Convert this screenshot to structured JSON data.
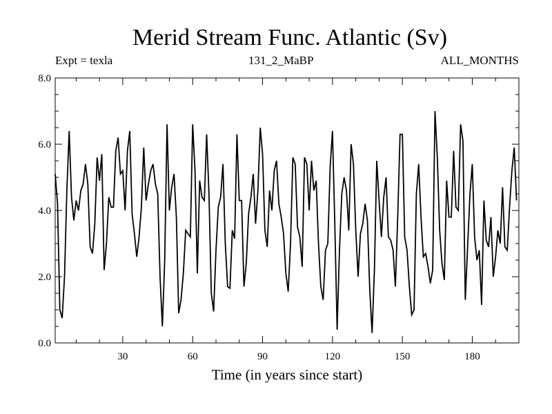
{
  "header": {
    "title": "Merid Stream Func. Atlantic (Sv)",
    "left_label": "Expt = texla",
    "center_label": "131_2_MaBP",
    "right_label": "ALL_MONTHS"
  },
  "chart_data": {
    "type": "line",
    "title": "Merid Stream Func. Atlantic (Sv)",
    "xlabel": "Time (in years since start)",
    "ylabel": "",
    "xlim": [
      1,
      200
    ],
    "ylim": [
      0.0,
      8.0
    ],
    "x_ticks": [
      30,
      60,
      90,
      120,
      150,
      180
    ],
    "y_ticks": [
      0.0,
      2.0,
      4.0,
      6.0,
      8.0
    ],
    "y_tick_labels": [
      "0.0",
      "2.0",
      "4.0",
      "6.0",
      "8.0"
    ],
    "series": [
      {
        "name": "ALL_MONTHS",
        "x_start": 1,
        "x_step": 1,
        "values": [
          5.1,
          4.2,
          1.0,
          0.75,
          2.0,
          4.6,
          6.4,
          4.4,
          3.7,
          4.3,
          4.0,
          4.6,
          4.8,
          5.4,
          4.8,
          2.9,
          2.7,
          3.6,
          5.6,
          4.9,
          5.7,
          2.2,
          3.0,
          4.4,
          4.1,
          4.1,
          5.8,
          6.2,
          5.1,
          5.2,
          4.0,
          5.8,
          6.4,
          3.9,
          3.3,
          2.6,
          3.2,
          4.1,
          5.9,
          4.3,
          4.8,
          5.2,
          5.4,
          4.8,
          4.5,
          2.0,
          0.5,
          2.5,
          6.6,
          4.0,
          4.7,
          5.1,
          3.8,
          0.9,
          1.3,
          2.1,
          3.4,
          3.3,
          3.2,
          6.6,
          5.2,
          2.1,
          4.9,
          4.4,
          4.3,
          6.3,
          4.5,
          1.5,
          0.95,
          2.8,
          4.1,
          4.4,
          5.4,
          3.0,
          1.7,
          1.65,
          3.4,
          3.15,
          6.3,
          4.3,
          4.3,
          1.7,
          2.4,
          3.9,
          4.4,
          5.1,
          3.6,
          4.6,
          6.5,
          5.7,
          3.4,
          2.9,
          4.6,
          4.0,
          5.2,
          5.5,
          4.2,
          3.8,
          3.3,
          2.1,
          1.55,
          3.0,
          5.6,
          5.4,
          3.5,
          3.2,
          2.3,
          5.6,
          5.4,
          4.0,
          5.5,
          4.6,
          4.9,
          3.0,
          1.7,
          1.3,
          2.8,
          3.0,
          5.3,
          6.4,
          3.6,
          0.4,
          2.8,
          4.5,
          5.0,
          4.6,
          3.4,
          6.0,
          5.4,
          3.4,
          2.0,
          3.3,
          3.6,
          4.2,
          3.7,
          1.6,
          0.3,
          2.2,
          5.5,
          4.3,
          3.2,
          4.4,
          5.0,
          3.2,
          3.1,
          2.8,
          1.7,
          3.8,
          6.3,
          6.3,
          3.2,
          2.8,
          1.7,
          0.85,
          1.0,
          4.5,
          5.4,
          3.8,
          2.6,
          2.7,
          2.3,
          1.8,
          2.2,
          7.0,
          5.6,
          3.4,
          2.4,
          1.9,
          4.9,
          3.8,
          3.8,
          5.8,
          4.1,
          4.0,
          6.6,
          6.1,
          1.3,
          2.9,
          4.5,
          5.4,
          3.2,
          2.5,
          2.8,
          1.15,
          4.3,
          3.1,
          2.9,
          3.8,
          2.0,
          2.6,
          3.4,
          3.0,
          4.7,
          2.9,
          2.8,
          4.1,
          5.2,
          5.9,
          4.3
        ]
      }
    ]
  }
}
